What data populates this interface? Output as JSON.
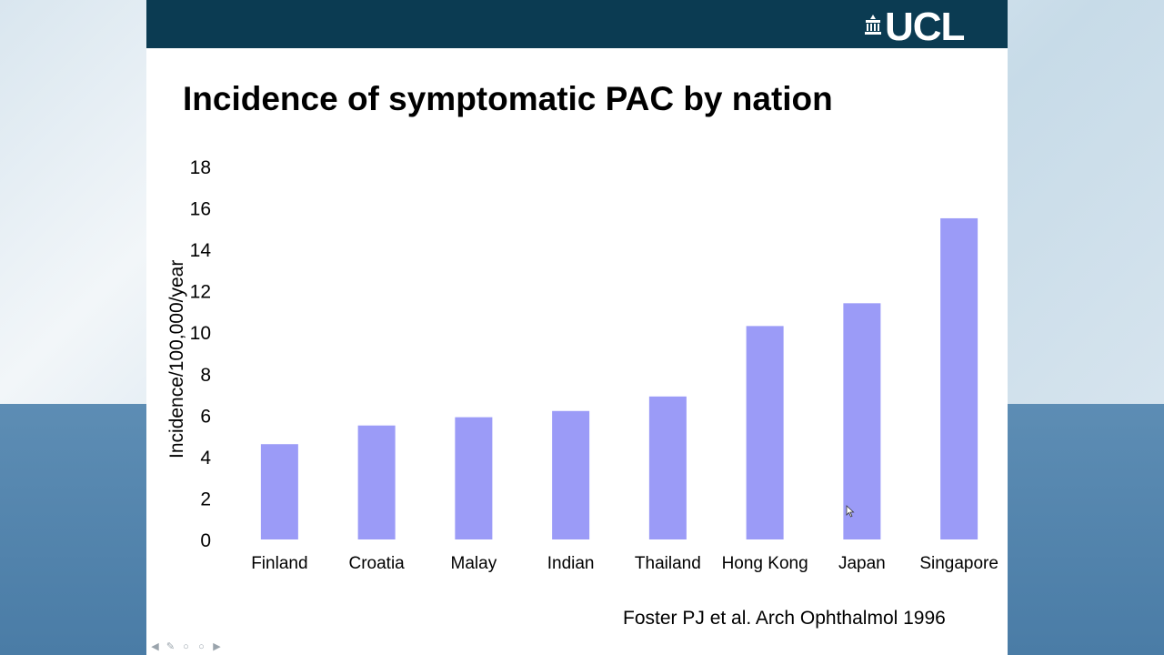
{
  "slide": {
    "logo_text": "UCL",
    "title": "Incidence of symptomatic PAC by nation",
    "citation": "Foster PJ  et al. Arch Ophthalmol 1996"
  },
  "icons": {
    "logo": "portico-icon",
    "nav": [
      "arrow-left-icon",
      "pen-icon",
      "slide-icon",
      "menu-icon",
      "arrow-right-icon"
    ],
    "pointer": "mouse-pointer-icon"
  },
  "colors": {
    "header": "#0b3b52",
    "bar": "#9b9bf7"
  },
  "chart_data": {
    "type": "bar",
    "title": "",
    "xlabel": "",
    "ylabel": "Incidence/100,000/year",
    "categories": [
      "Finland",
      "Croatia",
      "Malay",
      "Indian",
      "Thailand",
      "Hong Kong",
      "Japan",
      "Singapore"
    ],
    "values": [
      4.6,
      5.5,
      5.9,
      6.2,
      6.9,
      10.3,
      11.4,
      15.5
    ],
    "ylim": [
      0,
      18
    ],
    "yticks": [
      0,
      2,
      4,
      6,
      8,
      10,
      12,
      14,
      16,
      18
    ],
    "grid": false,
    "legend": "none"
  }
}
